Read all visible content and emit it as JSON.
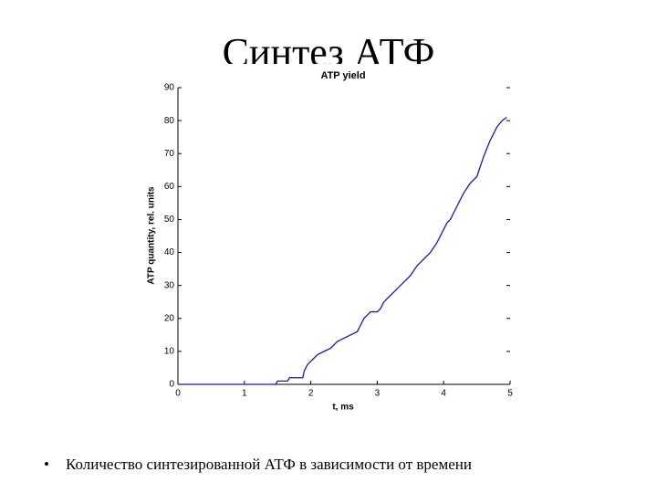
{
  "slide": {
    "title": "Синтез АТФ",
    "bullet": "Количество синтезированной АТФ в зависимости от времени"
  },
  "chart_data": {
    "type": "line",
    "title": "ATP yield",
    "x_label": "t, ms",
    "y_label": "ATP quantity, rel. units",
    "x": [
      0,
      1.47,
      1.5,
      1.65,
      1.68,
      1.88,
      1.9,
      1.95,
      2.0,
      2.05,
      2.1,
      2.2,
      2.3,
      2.4,
      2.5,
      2.6,
      2.7,
      2.75,
      2.8,
      2.85,
      2.9,
      3.0,
      3.05,
      3.1,
      3.2,
      3.3,
      3.4,
      3.5,
      3.6,
      3.7,
      3.8,
      3.9,
      4.0,
      4.05,
      4.1,
      4.2,
      4.3,
      4.4,
      4.5,
      4.55,
      4.6,
      4.7,
      4.8,
      4.88,
      4.95
    ],
    "series": [
      {
        "name": "ATP",
        "color": "#1a1aa0",
        "values": [
          0,
          0,
          1,
          1,
          2,
          2,
          4,
          6,
          7,
          8,
          9,
          10,
          11,
          13,
          14,
          15,
          16,
          18,
          20,
          21,
          22,
          22,
          23,
          25,
          27,
          29,
          31,
          33,
          36,
          38,
          40,
          43,
          47,
          49,
          50,
          54,
          58,
          61,
          63,
          66,
          69,
          74,
          78,
          80,
          81
        ]
      }
    ],
    "xlim": [
      0,
      5
    ],
    "xticks": [
      0,
      1,
      2,
      3,
      4,
      5
    ],
    "ylim": [
      0,
      90
    ],
    "yticks": [
      0,
      10,
      20,
      30,
      40,
      50,
      60,
      70,
      80,
      90
    ]
  }
}
